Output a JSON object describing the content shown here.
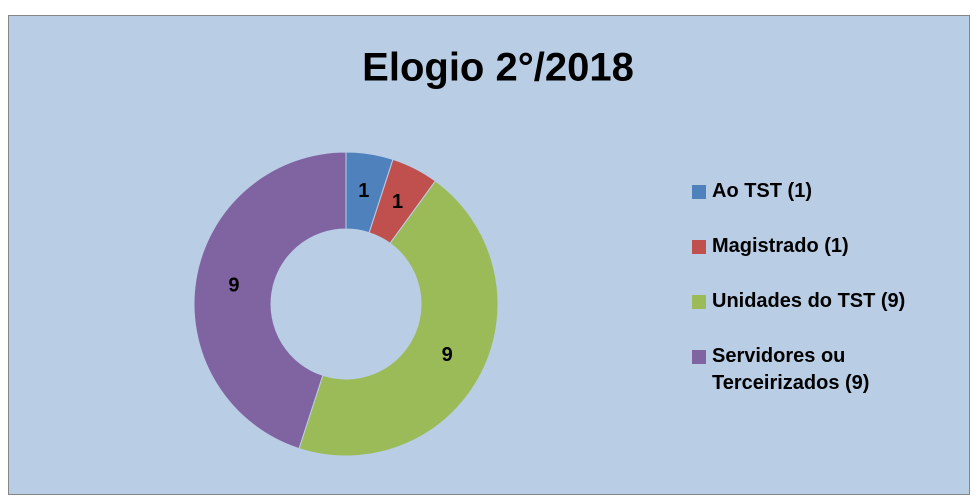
{
  "chart_data": {
    "type": "donut",
    "title": "Elogio 2°/2018",
    "categories": [
      "Ao TST (1)",
      "Magistrado (1)",
      "Unidades do TST (9)",
      "Servidores ou Terceirizados (9)"
    ],
    "values": [
      1,
      1,
      9,
      9
    ],
    "colors": [
      "#4f81bd",
      "#c0504d",
      "#9bbb59",
      "#8064a2"
    ],
    "legend": "right"
  }
}
